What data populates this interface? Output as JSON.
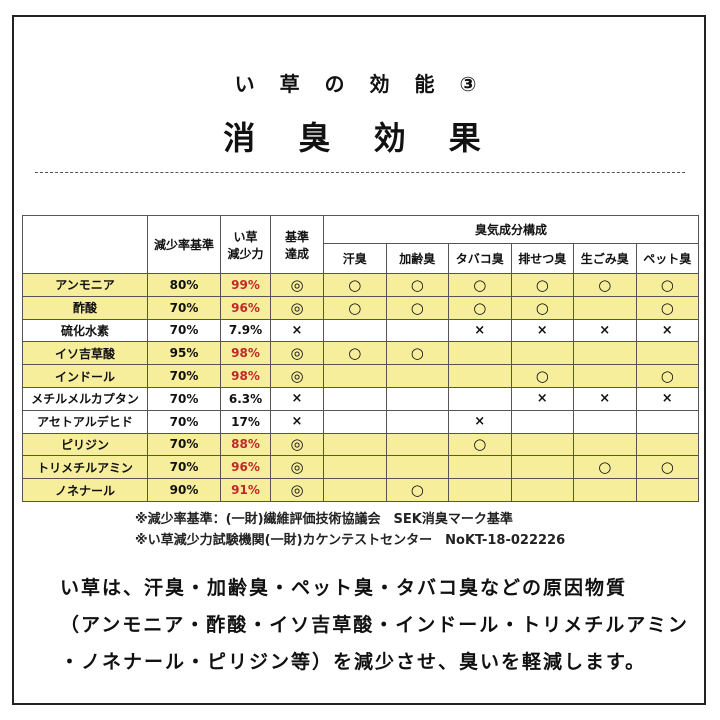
{
  "header": {
    "subtitle": "い 草 の 効 能 ③",
    "title": "消 臭 効 果"
  },
  "table": {
    "headers": {
      "standard": "減少率基準",
      "igusa_line1": "い草",
      "igusa_line2": "減少力",
      "achieved_line1": "基準",
      "achieved_line2": "達成",
      "components": "臭気成分構成"
    },
    "odor_columns": [
      "汗臭",
      "加齢臭",
      "タバコ臭",
      "排せつ臭",
      "生ごみ臭",
      "ペット臭"
    ],
    "rows": [
      {
        "name": "アンモニア",
        "standard": "80%",
        "igusa": "99%",
        "achieved": "◎",
        "marks": [
          "○",
          "○",
          "○",
          "○",
          "○",
          "○"
        ],
        "highlight": true
      },
      {
        "name": "酢酸",
        "standard": "70%",
        "igusa": "96%",
        "achieved": "◎",
        "marks": [
          "○",
          "○",
          "○",
          "○",
          "",
          "○"
        ],
        "highlight": true
      },
      {
        "name": "硫化水素",
        "standard": "70%",
        "igusa": "7.9%",
        "achieved": "×",
        "marks": [
          "",
          "",
          "×",
          "×",
          "×",
          "×"
        ],
        "highlight": false
      },
      {
        "name": "イソ吉草酸",
        "standard": "95%",
        "igusa": "98%",
        "achieved": "◎",
        "marks": [
          "○",
          "○",
          "",
          "",
          "",
          ""
        ],
        "highlight": true
      },
      {
        "name": "インドール",
        "standard": "70%",
        "igusa": "98%",
        "achieved": "◎",
        "marks": [
          "",
          "",
          "",
          "○",
          "",
          "○"
        ],
        "highlight": true
      },
      {
        "name": "メチルメルカプタン",
        "standard": "70%",
        "igusa": "6.3%",
        "achieved": "×",
        "marks": [
          "",
          "",
          "",
          "×",
          "×",
          "×"
        ],
        "highlight": false
      },
      {
        "name": "アセトアルデヒド",
        "standard": "70%",
        "igusa": "17%",
        "achieved": "×",
        "marks": [
          "",
          "",
          "×",
          "",
          "",
          ""
        ],
        "highlight": false
      },
      {
        "name": "ピリジン",
        "standard": "70%",
        "igusa": "88%",
        "achieved": "◎",
        "marks": [
          "",
          "",
          "○",
          "",
          "",
          ""
        ],
        "highlight": true
      },
      {
        "name": "トリメチルアミン",
        "standard": "70%",
        "igusa": "96%",
        "achieved": "◎",
        "marks": [
          "",
          "",
          "",
          "",
          "○",
          "○"
        ],
        "highlight": true
      },
      {
        "name": "ノネナール",
        "standard": "90%",
        "igusa": "91%",
        "achieved": "◎",
        "marks": [
          "",
          "○",
          "",
          "",
          "",
          ""
        ],
        "highlight": true
      }
    ]
  },
  "notes": [
    "※減少率基準：(一財)繊維評価技術協議会　SEK消臭マーク基準",
    "※い草減少力試験機関(一財)カケンテストセンター　NoKT-18-022226"
  ],
  "body_lines": [
    "い草は、汗臭・加齢臭・ペット臭・タバコ臭などの原因物質",
    "（アンモニア・酢酸・イソ吉草酸・インドール・トリメチルアミン",
    "・ノネナール・ピリジン等）を減少させ、臭いを軽減します。"
  ],
  "colors": {
    "highlight": "#f6ee9b",
    "accent_red": "#c0282a",
    "border": "#555555"
  }
}
